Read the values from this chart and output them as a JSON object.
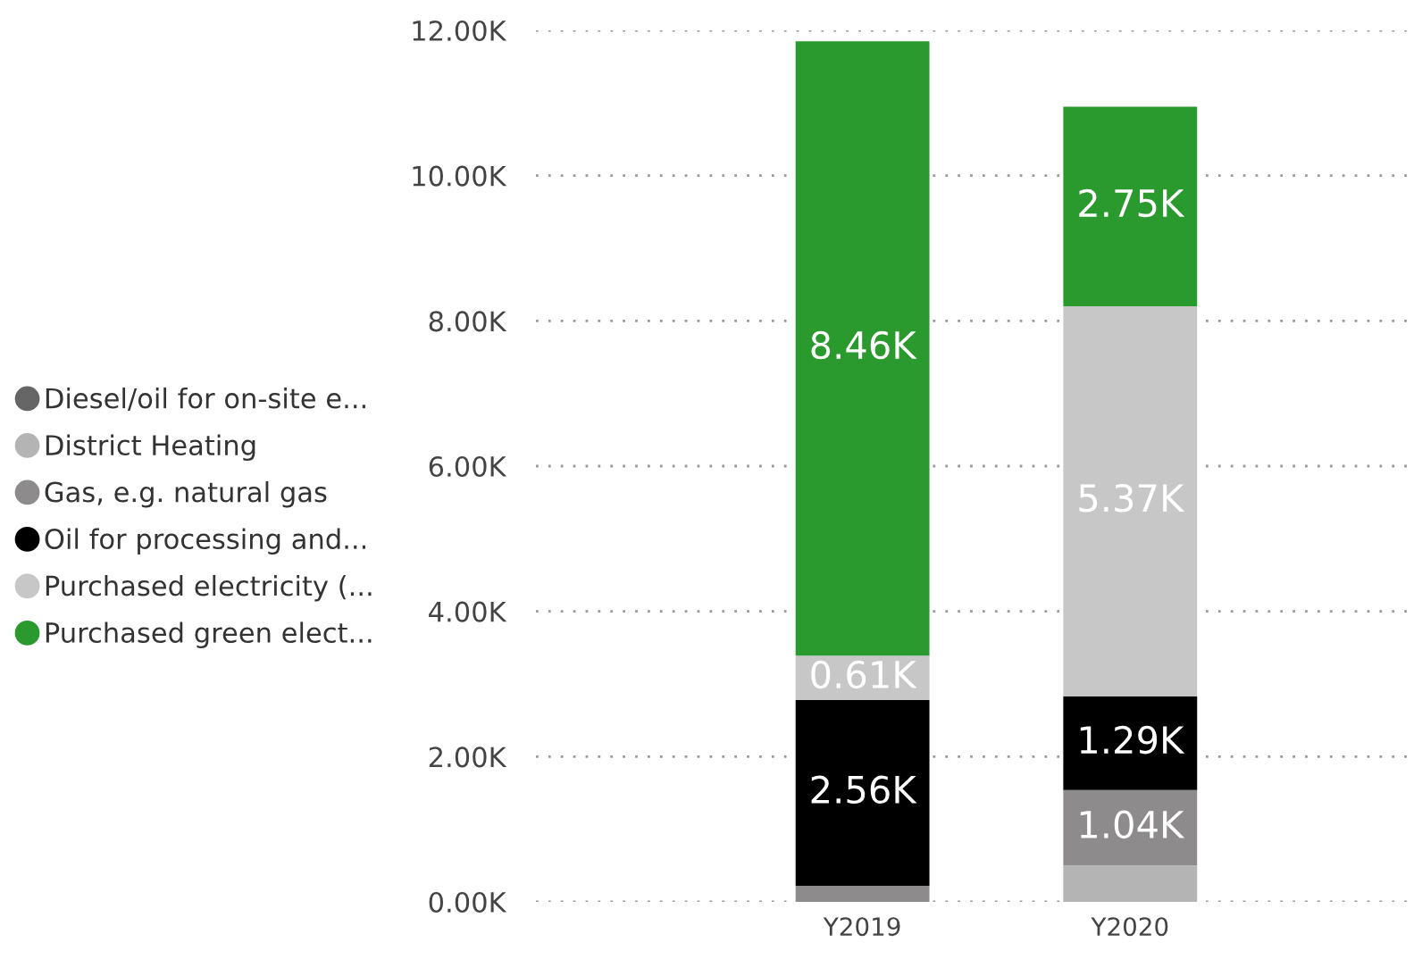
{
  "chart_data": {
    "type": "bar",
    "stacked": true,
    "categories": [
      "Y2019",
      "Y2020"
    ],
    "series": [
      {
        "name": "Diesel/oil for on-site e...",
        "color": "#666666",
        "values": [
          null,
          null
        ],
        "value_labels": [
          null,
          null
        ]
      },
      {
        "name": "District Heating",
        "color": "#b4b4b4",
        "values": [
          null,
          500
        ],
        "value_labels": [
          null,
          null
        ]
      },
      {
        "name": "Gas, e.g. natural gas",
        "color": "#8d8b8b",
        "values": [
          220,
          1040
        ],
        "value_labels": [
          null,
          "1.04K"
        ]
      },
      {
        "name": "Oil for processing and...",
        "color": "#000000",
        "values": [
          2560,
          1290
        ],
        "value_labels": [
          "2.56K",
          "1.29K"
        ]
      },
      {
        "name": "Purchased electricity (...",
        "color": "#c6c7c6",
        "values": [
          610,
          5370
        ],
        "value_labels": [
          "0.61K",
          "5.37K"
        ]
      },
      {
        "name": "Purchased green elect...",
        "color": "#2b9a2e",
        "values": [
          8460,
          2750
        ],
        "value_labels": [
          "8.46K",
          "2.75K"
        ]
      }
    ],
    "ylim": [
      0,
      12000
    ],
    "yticks": [
      {
        "value": 0,
        "label": "0.00K"
      },
      {
        "value": 2000,
        "label": "2.00K"
      },
      {
        "value": 4000,
        "label": "4.00K"
      },
      {
        "value": 6000,
        "label": "6.00K"
      },
      {
        "value": 8000,
        "label": "8.00K"
      },
      {
        "value": 10000,
        "label": "10.00K"
      },
      {
        "value": 12000,
        "label": "12.00K"
      }
    ],
    "grid": "y",
    "legend": "left",
    "marker": "circle"
  }
}
